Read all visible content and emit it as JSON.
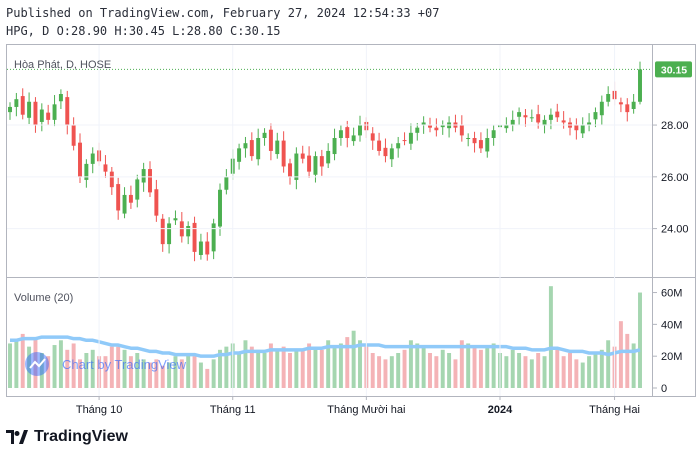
{
  "header": {
    "line1": "Published on TradingView.com, February 27, 2024 12:54:33 +07",
    "line2": "HPG, D O:28.90 H:30.45 L:28.80 C:30.15"
  },
  "legend": {
    "symbol": "Hòa Phát, D, HOSE",
    "volume": "Volume (20)"
  },
  "watermark": "Chart by TradingView",
  "footer": {
    "brand": "TradingView"
  },
  "colors": {
    "up": "#4caf50",
    "down": "#ef5350",
    "up_vol": "#a5d6b0",
    "down_vol": "#f4b3b6",
    "ma": "#90caf9",
    "price_badge": "#4caf50"
  },
  "chart_data": {
    "type": "candlestick",
    "title": "Hòa Phát, D, HOSE",
    "last_price": 30.15,
    "last_price_label": "30.15",
    "ohlc": {
      "open": 28.9,
      "high": 30.45,
      "low": 28.8,
      "close": 30.15
    },
    "price_axis": {
      "ticks": [
        24,
        26,
        28
      ],
      "tick_labels": [
        "24.00",
        "26.00",
        "28.00"
      ],
      "range": [
        22.4,
        30.9
      ]
    },
    "volume_axis": {
      "ticks": [
        0,
        20,
        40,
        60
      ],
      "tick_labels": [
        "0",
        "20M",
        "40M",
        "60M"
      ],
      "range": [
        0,
        66
      ],
      "unit": "M"
    },
    "x_labels": [
      {
        "index": 14,
        "label": "Tháng 10",
        "bold": false
      },
      {
        "index": 35,
        "label": "Tháng 11",
        "bold": false
      },
      {
        "index": 56,
        "label": "Tháng Mười hai",
        "bold": false
      },
      {
        "index": 77,
        "label": "2024",
        "bold": true
      },
      {
        "index": 95,
        "label": "Tháng Hai",
        "bold": false
      }
    ],
    "closes": [
      28.7,
      29.0,
      28.4,
      28.9,
      28.0,
      28.6,
      28.2,
      28.8,
      29.2,
      28.0,
      27.2,
      26.0,
      26.5,
      26.9,
      26.6,
      26.2,
      25.6,
      24.7,
      25.3,
      25.0,
      25.9,
      26.3,
      25.4,
      24.5,
      23.4,
      24.2,
      24.4,
      23.7,
      24.1,
      23.1,
      23.5,
      23.0,
      24.2,
      25.5,
      26.0,
      26.7,
      27.1,
      27.3,
      26.8,
      27.5,
      27.7,
      27.0,
      27.4,
      26.4,
      26.0,
      26.9,
      26.7,
      26.2,
      26.8,
      26.4,
      27.0,
      27.5,
      27.8,
      27.5,
      27.6,
      28.0,
      27.8,
      27.4,
      27.0,
      26.8,
      27.1,
      27.3,
      27.4,
      27.7,
      27.9,
      28.1,
      27.9,
      27.8,
      28.0,
      28.1,
      27.9,
      27.6,
      27.5,
      27.3,
      27.1,
      27.5,
      27.8,
      28.0,
      28.0,
      28.2,
      28.5,
      28.3,
      28.3,
      28.1,
      28.2,
      28.4,
      28.3,
      28.1,
      27.9,
      27.8,
      28.0,
      28.1,
      28.5,
      28.9,
      29.2,
      29.0,
      28.8,
      28.5,
      28.9,
      30.15
    ],
    "volumes": [
      28,
      30,
      34,
      26,
      32,
      22,
      20,
      27,
      30,
      24,
      28,
      18,
      22,
      24,
      20,
      20,
      26,
      26,
      24,
      20,
      22,
      18,
      16,
      18,
      14,
      16,
      20,
      18,
      22,
      20,
      16,
      12,
      18,
      24,
      26,
      28,
      22,
      30,
      26,
      24,
      22,
      28,
      24,
      26,
      22,
      24,
      24,
      28,
      26,
      24,
      30,
      26,
      28,
      32,
      36,
      30,
      26,
      22,
      20,
      18,
      20,
      22,
      24,
      30,
      28,
      26,
      22,
      20,
      24,
      22,
      18,
      30,
      28,
      26,
      24,
      26,
      28,
      22,
      20,
      24,
      22,
      20,
      18,
      22,
      20,
      64,
      24,
      20,
      22,
      18,
      16,
      20,
      22,
      24,
      30,
      26,
      42,
      34,
      28,
      60
    ],
    "volume_ma": [
      30,
      30,
      31,
      31,
      31,
      32,
      32,
      32,
      32,
      32,
      31,
      31,
      30,
      30,
      29,
      28,
      27,
      27,
      26,
      25,
      25,
      24,
      23,
      23,
      22,
      22,
      21,
      21,
      21,
      21,
      20,
      20,
      20,
      21,
      21,
      22,
      22,
      23,
      23,
      23,
      23,
      24,
      24,
      24,
      24,
      24,
      24,
      25,
      25,
      25,
      26,
      26,
      26,
      26,
      26,
      27,
      27,
      27,
      27,
      26,
      26,
      26,
      26,
      26,
      26,
      26,
      26,
      26,
      26,
      26,
      26,
      26,
      26,
      26,
      26,
      26,
      26,
      26,
      26,
      25,
      25,
      25,
      24,
      24,
      24,
      25,
      25,
      24,
      23,
      23,
      23,
      22,
      22,
      22,
      21,
      22,
      23,
      23,
      23,
      24
    ]
  }
}
